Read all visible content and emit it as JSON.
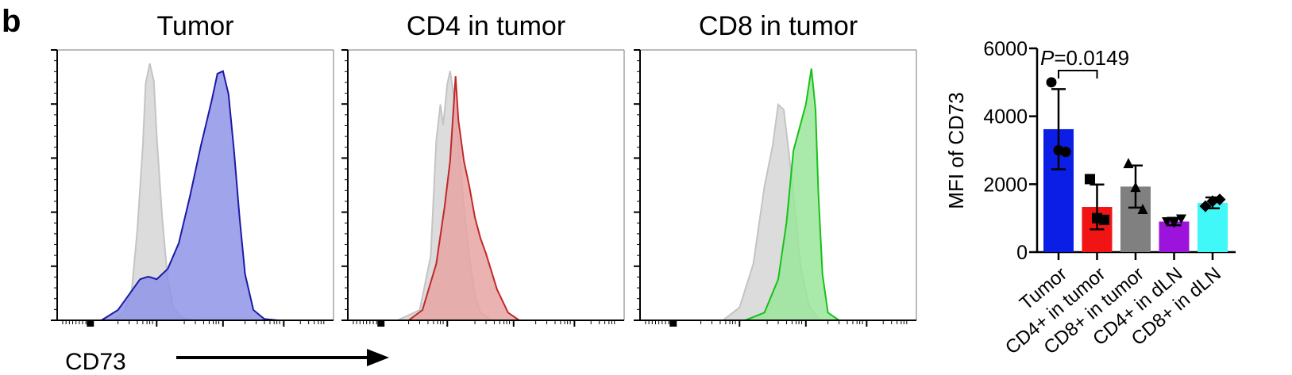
{
  "panel_label": "b",
  "x_axis_label": "CD73",
  "chart_data": [
    {
      "type": "area",
      "title": "Tumor",
      "series": [
        {
          "name": "",
          "color": "#c4c4c4",
          "fill": "#dcdcdc",
          "x": [
            0.0,
            0.2,
            0.24,
            0.27,
            0.29,
            0.31,
            0.32,
            0.335,
            0.35,
            0.36,
            0.38,
            0.4,
            0.42,
            0.45,
            0.5,
            0.55
          ],
          "y": [
            0.0,
            0.0,
            0.03,
            0.12,
            0.35,
            0.68,
            0.92,
            1.0,
            0.93,
            0.72,
            0.4,
            0.16,
            0.05,
            0.01,
            0.0,
            0.0
          ]
        },
        {
          "name": "",
          "color": "#1a1aa8",
          "fill": "#8f94e8",
          "x": [
            0.0,
            0.16,
            0.22,
            0.26,
            0.3,
            0.33,
            0.36,
            0.4,
            0.44,
            0.48,
            0.52,
            0.56,
            0.58,
            0.6,
            0.62,
            0.64,
            0.66,
            0.68,
            0.71,
            0.75,
            0.8,
            1.0
          ],
          "y": [
            0.0,
            0.0,
            0.04,
            0.1,
            0.16,
            0.17,
            0.16,
            0.2,
            0.3,
            0.48,
            0.68,
            0.86,
            0.96,
            0.97,
            0.88,
            0.66,
            0.4,
            0.18,
            0.04,
            0.005,
            0.0,
            0.0
          ]
        }
      ]
    },
    {
      "type": "area",
      "title": "CD4 in tumor",
      "series": [
        {
          "name": "",
          "color": "#c4c4c4",
          "fill": "#dcdcdc",
          "x": [
            0.0,
            0.18,
            0.26,
            0.3,
            0.32,
            0.335,
            0.345,
            0.36,
            0.37,
            0.38,
            0.4,
            0.42,
            0.44,
            0.46,
            0.48,
            0.52,
            0.6
          ],
          "y": [
            0.0,
            0.0,
            0.04,
            0.25,
            0.7,
            0.84,
            0.76,
            0.92,
            0.97,
            0.9,
            0.7,
            0.44,
            0.24,
            0.1,
            0.03,
            0.0,
            0.0
          ]
        },
        {
          "name": "",
          "color": "#c0282a",
          "fill": "#e8a4a4",
          "x": [
            0.0,
            0.22,
            0.27,
            0.32,
            0.35,
            0.37,
            0.39,
            0.4,
            0.42,
            0.44,
            0.46,
            0.48,
            0.5,
            0.54,
            0.58,
            0.62,
            0.7
          ],
          "y": [
            0.0,
            0.0,
            0.04,
            0.22,
            0.44,
            0.62,
            0.95,
            0.78,
            0.62,
            0.52,
            0.4,
            0.32,
            0.26,
            0.12,
            0.03,
            0.0,
            0.0
          ]
        }
      ]
    },
    {
      "type": "area",
      "title": "CD8 in tumor",
      "series": [
        {
          "name": "",
          "color": "#c4c4c4",
          "fill": "#dcdcdc",
          "x": [
            0.0,
            0.3,
            0.36,
            0.41,
            0.45,
            0.48,
            0.5,
            0.52,
            0.54,
            0.56,
            0.58,
            0.61,
            0.65,
            0.75
          ],
          "y": [
            0.0,
            0.0,
            0.05,
            0.22,
            0.52,
            0.68,
            0.84,
            0.82,
            0.64,
            0.44,
            0.22,
            0.06,
            0.0,
            0.0
          ]
        },
        {
          "name": "",
          "color": "#16c21a",
          "fill": "#9ae59a",
          "x": [
            0.0,
            0.38,
            0.45,
            0.5,
            0.53,
            0.555,
            0.58,
            0.6,
            0.62,
            0.635,
            0.645,
            0.66,
            0.68,
            0.72,
            0.8
          ],
          "y": [
            0.0,
            0.0,
            0.03,
            0.16,
            0.38,
            0.66,
            0.76,
            0.84,
            0.98,
            0.82,
            0.5,
            0.18,
            0.03,
            0.0,
            0.0
          ]
        }
      ]
    },
    {
      "type": "bar",
      "title": "",
      "ylabel": "MFI of CD73",
      "ylim": [
        0,
        6000
      ],
      "yticks": [
        "0",
        "2000",
        "4000",
        "6000"
      ],
      "categories": [
        "Tumor",
        "CD4+ in tumor",
        "CD8+ in tumor",
        "CD4+ in dLN",
        "CD8+ in dLN"
      ],
      "values": [
        3620,
        1330,
        1930,
        900,
        1450
      ],
      "errors": [
        1180,
        660,
        620,
        110,
        160
      ],
      "colors": [
        "#0a1ee6",
        "#f01414",
        "#808080",
        "#9c14dc",
        "#40f8f8"
      ],
      "points": [
        [
          5000,
          2950,
          3000
        ],
        [
          2150,
          950,
          1000
        ],
        [
          2600,
          1250,
          1900
        ],
        [
          900,
          980,
          860
        ],
        [
          1350,
          1550,
          1500
        ]
      ],
      "markers": [
        "circle",
        "square",
        "triangle",
        "triangle-down",
        "diamond"
      ],
      "annotation": {
        "p_symbol": "P",
        "p_value": "=0.0149",
        "between": [
          0,
          1
        ]
      }
    }
  ]
}
